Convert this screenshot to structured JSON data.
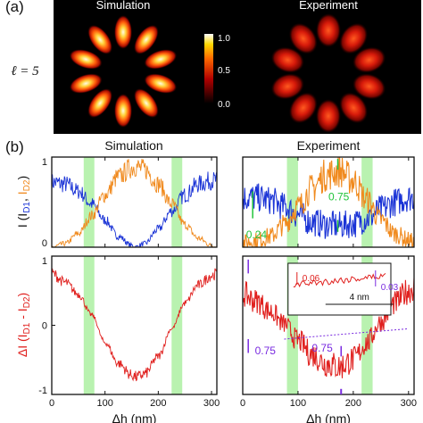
{
  "panel_a": {
    "tag": "(a)",
    "order_label": "ℓ = 5",
    "sim_title": "Simulation",
    "exp_title": "Experiment",
    "lobes": 10,
    "colorbar_ticks": [
      "1.0",
      "0.5",
      "0.0"
    ]
  },
  "panel_b": {
    "tag": "(b)",
    "sim_title": "Simulation",
    "exp_title": "Experiment"
  },
  "chart_data": [
    {
      "type": "line",
      "id": "top-sim",
      "ylabel": "I (I_D1, I_D2)",
      "xlim": [
        0,
        310
      ],
      "ylim": [
        0,
        1
      ],
      "xticks": [
        0,
        100,
        200,
        300
      ],
      "yticks": [
        "0",
        "1"
      ],
      "shaded_bands": [
        [
          60,
          80
        ],
        [
          225,
          245
        ]
      ],
      "series": [
        {
          "color": "#1a33d6",
          "x": [
            0,
            25,
            50,
            75,
            100,
            125,
            150,
            155,
            175,
            200,
            225,
            250,
            275,
            300,
            310
          ],
          "y": [
            0.72,
            0.7,
            0.62,
            0.48,
            0.3,
            0.12,
            0.02,
            0.0,
            0.04,
            0.2,
            0.4,
            0.58,
            0.7,
            0.74,
            0.74
          ]
        },
        {
          "color": "#f08a1e",
          "x": [
            0,
            25,
            50,
            75,
            100,
            125,
            150,
            155,
            175,
            200,
            225,
            250,
            275,
            300,
            310
          ],
          "y": [
            0.0,
            0.04,
            0.15,
            0.35,
            0.58,
            0.78,
            0.88,
            0.9,
            0.86,
            0.7,
            0.48,
            0.25,
            0.1,
            0.02,
            0.0
          ]
        }
      ]
    },
    {
      "type": "line",
      "id": "top-exp",
      "xlim": [
        0,
        310
      ],
      "ylim": [
        0,
        1
      ],
      "xticks": [
        0,
        100,
        200,
        300
      ],
      "shaded_bands": [
        [
          80,
          100
        ],
        [
          215,
          235
        ]
      ],
      "annotations": [
        "0.75",
        "0.24"
      ],
      "series": [
        {
          "color": "#1a33d6",
          "x": [
            0,
            25,
            50,
            75,
            100,
            125,
            150,
            175,
            200,
            225,
            250,
            275,
            300,
            310
          ],
          "y": [
            0.55,
            0.55,
            0.52,
            0.45,
            0.36,
            0.28,
            0.25,
            0.24,
            0.26,
            0.32,
            0.42,
            0.5,
            0.55,
            0.55
          ]
        },
        {
          "color": "#f08a1e",
          "x": [
            0,
            25,
            50,
            75,
            100,
            125,
            150,
            175,
            200,
            225,
            250,
            275,
            300,
            310
          ],
          "y": [
            0.05,
            0.07,
            0.12,
            0.25,
            0.45,
            0.65,
            0.8,
            0.85,
            0.74,
            0.52,
            0.3,
            0.15,
            0.08,
            0.05
          ]
        }
      ]
    },
    {
      "type": "line",
      "id": "bottom-sim",
      "ylabel": "ΔI (I_D1 - I_D2)",
      "xlabel": "Δh (nm)",
      "xlim": [
        0,
        310
      ],
      "ylim": [
        -1,
        1
      ],
      "xticks": [
        0,
        100,
        200,
        300
      ],
      "yticks": [
        "1",
        "0",
        "-1"
      ],
      "shaded_bands": [
        [
          60,
          80
        ],
        [
          225,
          245
        ]
      ],
      "series": [
        {
          "color": "#e0201e",
          "x": [
            0,
            25,
            50,
            75,
            100,
            125,
            150,
            160,
            175,
            200,
            225,
            250,
            275,
            300,
            310
          ],
          "y": [
            0.75,
            0.62,
            0.45,
            0.15,
            -0.25,
            -0.55,
            -0.72,
            -0.75,
            -0.7,
            -0.45,
            -0.05,
            0.32,
            0.58,
            0.72,
            0.75
          ]
        }
      ]
    },
    {
      "type": "line",
      "id": "bottom-exp",
      "xlabel": "Δh (nm)",
      "xlim": [
        0,
        310
      ],
      "ylim": [
        -1,
        1
      ],
      "xticks": [
        0,
        100,
        200,
        300
      ],
      "shaded_bands": [
        [
          80,
          100
        ],
        [
          215,
          235
        ]
      ],
      "annotations": [
        "0.75",
        "0.75",
        "0.06",
        "0.03",
        "4 nm"
      ],
      "series": [
        {
          "color": "#e0201e",
          "x": [
            0,
            25,
            50,
            75,
            100,
            125,
            150,
            175,
            200,
            225,
            250,
            275,
            300,
            310
          ],
          "y": [
            0.45,
            0.35,
            0.2,
            0.02,
            -0.22,
            -0.42,
            -0.55,
            -0.6,
            -0.5,
            -0.25,
            0.05,
            0.32,
            0.5,
            0.55
          ]
        }
      ]
    }
  ]
}
